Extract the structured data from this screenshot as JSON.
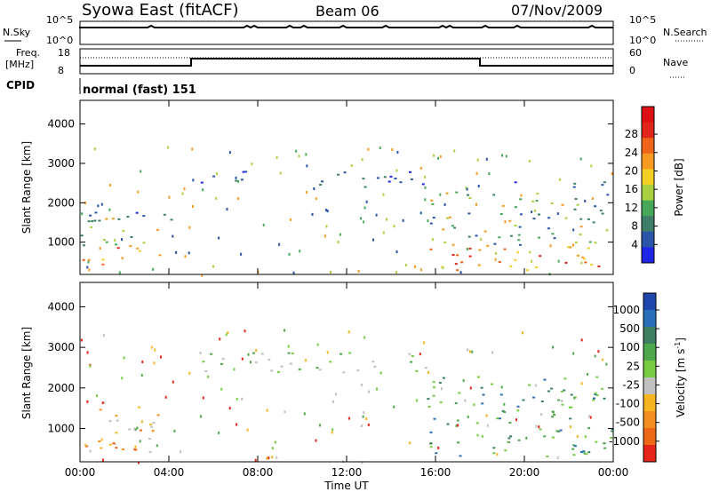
{
  "header": {
    "title": "Syowa East (fitACF)",
    "beam": "Beam 06",
    "date": "07/Nov/2009"
  },
  "top_panels": {
    "nsky_label": "N.Sky",
    "nsky_ticks": [
      "10^5",
      "10^0"
    ],
    "nsearch_label": "N.Search",
    "nsearch_ticks": [
      "10^5",
      "10^0"
    ],
    "freq_label": "Freq.",
    "freq_unit": "[MHz]",
    "freq_ticks": [
      "18",
      "8"
    ],
    "nave_label": "Nave",
    "nave_ticks": [
      "60",
      "0"
    ],
    "cpid_label": "CPID",
    "cpid_value": "normal (fast) 151"
  },
  "chart_data": [
    {
      "type": "heatmap",
      "name": "power",
      "ylabel": "Slant Range [km]",
      "yticks": [
        "1000",
        "2000",
        "3000",
        "4000"
      ],
      "ylim": [
        180,
        4600
      ],
      "xlim_hours": [
        0,
        24
      ],
      "colorbar": {
        "label": "Power [dB]",
        "ticks": [
          "4",
          "8",
          "12",
          "16",
          "20",
          "24",
          "28"
        ],
        "colors": [
          "#1f25e6",
          "#2a55a8",
          "#3f7f6a",
          "#48a85a",
          "#a7d13e",
          "#f3ce24",
          "#f79a20",
          "#f0641a",
          "#e1251a",
          "#dd0f12"
        ]
      },
      "regions": [
        {
          "t0": 0.0,
          "t1": 3.6,
          "r0": 400,
          "r1": 1700,
          "level": "high"
        },
        {
          "t0": 0.3,
          "t1": 4.5,
          "r0": 1500,
          "r1": 1800,
          "level": "low"
        },
        {
          "t0": 5.0,
          "t1": 7.8,
          "r0": 2500,
          "r1": 2900,
          "level": "low"
        },
        {
          "t0": 10.5,
          "t1": 15.9,
          "r0": 2400,
          "r1": 2900,
          "level": "low"
        },
        {
          "t0": 15.6,
          "t1": 24.0,
          "r0": 300,
          "r1": 2300,
          "level": "high"
        },
        {
          "t0": 19.5,
          "t1": 23.6,
          "r0": 2350,
          "r1": 2550,
          "level": "low"
        }
      ]
    },
    {
      "type": "heatmap",
      "name": "velocity",
      "ylabel": "Slant Range [km]",
      "yticks": [
        "1000",
        "2000",
        "3000",
        "4000"
      ],
      "ylim": [
        180,
        4600
      ],
      "xlim_hours": [
        0,
        24
      ],
      "xticks": [
        "00:00",
        "04:00",
        "08:00",
        "12:00",
        "16:00",
        "20:00",
        "00:00"
      ],
      "xlabel": "Time UT",
      "colorbar": {
        "label": "Velocity [m s",
        "label_sup": "-1",
        "label_tail": "]",
        "ticks": [
          "1000",
          "500",
          "100",
          "25",
          "-25",
          "-100",
          "-500",
          "-1000"
        ],
        "colors": [
          "#1e46ad",
          "#2870b7",
          "#3d7f62",
          "#4da84b",
          "#77cc44",
          "#c0c0c0",
          "#f6b41f",
          "#f38e1c",
          "#ef6818",
          "#e6251a"
        ]
      },
      "regions": [
        {
          "t0": 0.0,
          "t1": 3.6,
          "r0": 400,
          "r1": 1700,
          "level": "neg"
        },
        {
          "t0": 5.0,
          "t1": 15.9,
          "r0": 2400,
          "r1": 2900,
          "level": "mixed"
        },
        {
          "t0": 15.6,
          "t1": 24.0,
          "r0": 300,
          "r1": 2300,
          "level": "pos"
        }
      ]
    }
  ]
}
